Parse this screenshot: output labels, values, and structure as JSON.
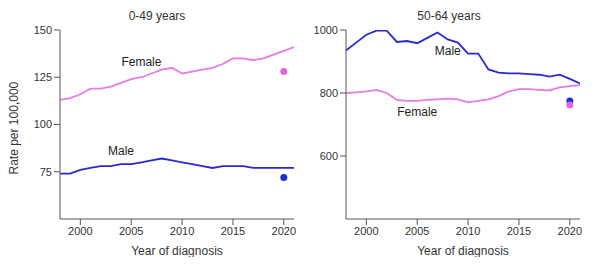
{
  "chart_data": [
    {
      "type": "line",
      "title": "0-49 years",
      "x_label": "Year of diagnosis",
      "y_label": "Rate per 100,000",
      "x": [
        1998,
        1999,
        2000,
        2001,
        2002,
        2003,
        2004,
        2005,
        2006,
        2007,
        2008,
        2009,
        2010,
        2011,
        2012,
        2013,
        2014,
        2015,
        2016,
        2017,
        2018,
        2019,
        2020,
        2021
      ],
      "xlim": [
        1998,
        2021
      ],
      "xticks": [
        2000,
        2005,
        2010,
        2015,
        2020
      ],
      "ylim": [
        50,
        150
      ],
      "yticks": [
        75,
        100,
        125,
        150
      ],
      "grid": false,
      "series": [
        {
          "name": "Female",
          "color": "#e57ce6",
          "line_style": "solid",
          "values": [
            113,
            114,
            116,
            119,
            119,
            120,
            122,
            124,
            125,
            127,
            129,
            130,
            127,
            128,
            129,
            130,
            132,
            135,
            135,
            134,
            135,
            137,
            139,
            141
          ]
        },
        {
          "name": "Male",
          "color": "#2a2ad2",
          "line_style": "solid",
          "values": [
            74,
            74,
            76,
            77,
            78,
            78,
            79,
            79,
            80,
            81,
            82,
            81,
            80,
            79,
            78,
            77,
            78,
            78,
            78,
            77,
            77,
            77,
            77,
            77
          ]
        },
        {
          "type": "scatter",
          "marker": "circle",
          "color": "#e066e0",
          "x": [
            2020
          ],
          "values": [
            128
          ]
        },
        {
          "type": "scatter",
          "marker": "circle",
          "color": "#1f2bd6",
          "x": [
            2020
          ],
          "values": [
            72
          ]
        }
      ],
      "annotations": [
        {
          "text": "Female",
          "x": 2006,
          "y": 133,
          "color": "#222222"
        },
        {
          "text": "Male",
          "x": 2004,
          "y": 86,
          "color": "#222222"
        }
      ]
    },
    {
      "type": "line",
      "title": "50-64 years",
      "x_label": "Year of diagnosis",
      "x": [
        1998,
        1999,
        2000,
        2001,
        2002,
        2003,
        2004,
        2005,
        2006,
        2007,
        2008,
        2009,
        2010,
        2011,
        2012,
        2013,
        2014,
        2015,
        2016,
        2017,
        2018,
        2019,
        2020,
        2021
      ],
      "xlim": [
        1998,
        2021
      ],
      "xticks": [
        2000,
        2005,
        2010,
        2015,
        2020
      ],
      "ylim": [
        400,
        1000
      ],
      "yticks": [
        600,
        800,
        1000
      ],
      "grid": false,
      "series": [
        {
          "name": "Male",
          "color": "#2a2ad2",
          "line_style": "solid",
          "values": [
            935,
            960,
            985,
            998,
            998,
            962,
            965,
            958,
            975,
            992,
            970,
            960,
            925,
            925,
            875,
            865,
            862,
            862,
            860,
            858,
            852,
            858,
            845,
            830
          ]
        },
        {
          "name": "Female",
          "color": "#e57ce6",
          "line_style": "solid",
          "values": [
            800,
            802,
            805,
            810,
            800,
            778,
            775,
            775,
            778,
            780,
            782,
            780,
            770,
            775,
            780,
            790,
            805,
            812,
            812,
            810,
            808,
            818,
            822,
            825
          ]
        },
        {
          "type": "scatter",
          "marker": "circle",
          "color": "#1f2bd6",
          "x": [
            2020
          ],
          "values": [
            775
          ]
        },
        {
          "type": "scatter",
          "marker": "circle",
          "color": "#e066e0",
          "x": [
            2020
          ],
          "values": [
            762
          ]
        }
      ],
      "annotations": [
        {
          "text": "Male",
          "x": 2008,
          "y": 935,
          "color": "#222222"
        },
        {
          "text": "Female",
          "x": 2005,
          "y": 740,
          "color": "#222222"
        }
      ]
    }
  ]
}
